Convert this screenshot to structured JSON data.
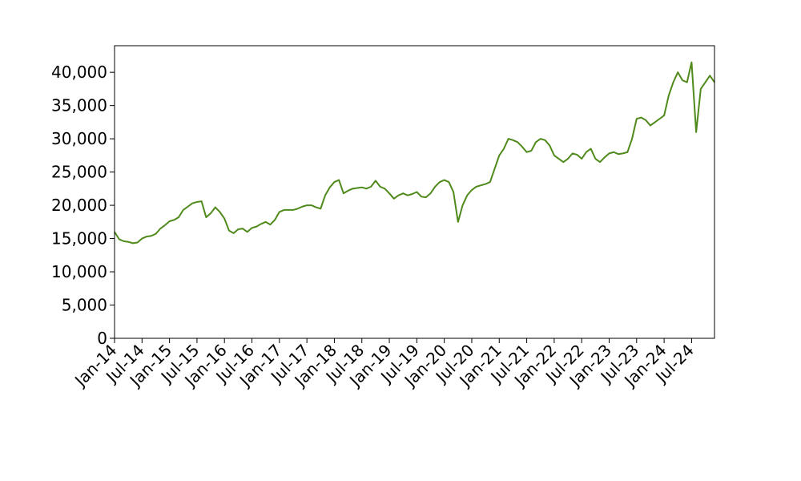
{
  "chart_data": {
    "type": "line",
    "x": [
      "2014-01",
      "2014-02",
      "2014-03",
      "2014-04",
      "2014-05",
      "2014-06",
      "2014-07",
      "2014-08",
      "2014-09",
      "2014-10",
      "2014-11",
      "2014-12",
      "2015-01",
      "2015-02",
      "2015-03",
      "2015-04",
      "2015-05",
      "2015-06",
      "2015-07",
      "2015-08",
      "2015-09",
      "2015-10",
      "2015-11",
      "2015-12",
      "2016-01",
      "2016-02",
      "2016-03",
      "2016-04",
      "2016-05",
      "2016-06",
      "2016-07",
      "2016-08",
      "2016-09",
      "2016-10",
      "2016-11",
      "2016-12",
      "2017-01",
      "2017-02",
      "2017-03",
      "2017-04",
      "2017-05",
      "2017-06",
      "2017-07",
      "2017-08",
      "2017-09",
      "2017-10",
      "2017-11",
      "2017-12",
      "2018-01",
      "2018-02",
      "2018-03",
      "2018-04",
      "2018-05",
      "2018-06",
      "2018-07",
      "2018-08",
      "2018-09",
      "2018-10",
      "2018-11",
      "2018-12",
      "2019-01",
      "2019-02",
      "2019-03",
      "2019-04",
      "2019-05",
      "2019-06",
      "2019-07",
      "2019-08",
      "2019-09",
      "2019-10",
      "2019-11",
      "2019-12",
      "2020-01",
      "2020-02",
      "2020-03",
      "2020-04",
      "2020-05",
      "2020-06",
      "2020-07",
      "2020-08",
      "2020-09",
      "2020-10",
      "2020-11",
      "2020-12",
      "2021-01",
      "2021-02",
      "2021-03",
      "2021-04",
      "2021-05",
      "2021-06",
      "2021-07",
      "2021-08",
      "2021-09",
      "2021-10",
      "2021-11",
      "2021-12",
      "2022-01",
      "2022-02",
      "2022-03",
      "2022-04",
      "2022-05",
      "2022-06",
      "2022-07",
      "2022-08",
      "2022-09",
      "2022-10",
      "2022-11",
      "2022-12",
      "2023-01",
      "2023-02",
      "2023-03",
      "2023-04",
      "2023-05",
      "2023-06",
      "2023-07",
      "2023-08",
      "2023-09",
      "2023-10",
      "2023-11",
      "2023-12",
      "2024-01",
      "2024-02",
      "2024-03",
      "2024-04",
      "2024-05",
      "2024-06",
      "2024-07",
      "2024-08",
      "2024-09",
      "2024-10",
      "2024-11",
      "2024-12"
    ],
    "series": [
      {
        "color": "#4f8a1b",
        "values": [
          16000,
          14900,
          14600,
          14500,
          14300,
          14400,
          15000,
          15300,
          15400,
          15700,
          16500,
          17000,
          17600,
          17800,
          18200,
          19300,
          19800,
          20300,
          20500,
          20600,
          18200,
          18800,
          19700,
          19000,
          18000,
          16200,
          15800,
          16400,
          16500,
          16000,
          16600,
          16800,
          17200,
          17500,
          17100,
          17800,
          19000,
          19300,
          19300,
          19300,
          19500,
          19800,
          20000,
          20000,
          19700,
          19500,
          21500,
          22700,
          23500,
          23800,
          21800,
          22200,
          22500,
          22600,
          22700,
          22500,
          22800,
          23700,
          22800,
          22500,
          21800,
          21000,
          21500,
          21800,
          21500,
          21700,
          22000,
          21300,
          21200,
          21800,
          22800,
          23500,
          23800,
          23500,
          22000,
          17500,
          20000,
          21500,
          22300,
          22800,
          23000,
          23200,
          23500,
          25500,
          27500,
          28500,
          30000,
          29800,
          29500,
          28800,
          28000,
          28200,
          29500,
          30000,
          29800,
          29000,
          27500,
          27000,
          26500,
          27000,
          27800,
          27600,
          27000,
          28000,
          28500,
          27000,
          26500,
          27200,
          27800,
          28000,
          27700,
          27800,
          28000,
          30000,
          33000,
          33200,
          32800,
          32000,
          32500,
          33000,
          33500,
          36500,
          38500,
          40000,
          38800,
          38500,
          41500,
          31000,
          37500,
          38500,
          39500,
          38500
        ]
      }
    ],
    "xlim": [
      "2014-01",
      "2024-12"
    ],
    "xticks": [
      {
        "value": "2014-01",
        "label": "Jan-14"
      },
      {
        "value": "2014-07",
        "label": "Jul-14"
      },
      {
        "value": "2015-01",
        "label": "Jan-15"
      },
      {
        "value": "2015-07",
        "label": "Jul-15"
      },
      {
        "value": "2016-01",
        "label": "Jan-16"
      },
      {
        "value": "2016-07",
        "label": "Jul-16"
      },
      {
        "value": "2017-01",
        "label": "Jan-17"
      },
      {
        "value": "2017-07",
        "label": "Jul-17"
      },
      {
        "value": "2018-01",
        "label": "Jan-18"
      },
      {
        "value": "2018-07",
        "label": "Jul-18"
      },
      {
        "value": "2019-01",
        "label": "Jan-19"
      },
      {
        "value": "2019-07",
        "label": "Jul-19"
      },
      {
        "value": "2020-01",
        "label": "Jan-20"
      },
      {
        "value": "2020-07",
        "label": "Jul-20"
      },
      {
        "value": "2021-01",
        "label": "Jan-21"
      },
      {
        "value": "2021-07",
        "label": "Jul-21"
      },
      {
        "value": "2022-01",
        "label": "Jan-22"
      },
      {
        "value": "2022-07",
        "label": "Jul-22"
      },
      {
        "value": "2023-01",
        "label": "Jan-23"
      },
      {
        "value": "2023-07",
        "label": "Jul-23"
      },
      {
        "value": "2024-01",
        "label": "Jan-24"
      },
      {
        "value": "2024-07",
        "label": "Jul-24"
      }
    ],
    "ylim": [
      0,
      44000
    ],
    "yticks": [
      0,
      {
        "value": 5000,
        "label": "5,000"
      },
      {
        "value": 10000,
        "label": "10,000"
      },
      {
        "value": 15000,
        "label": "15,000"
      },
      {
        "value": 20000,
        "label": "20,000"
      },
      {
        "value": 25000,
        "label": "25,000"
      },
      {
        "value": 30000,
        "label": "30,000"
      },
      {
        "value": 35000,
        "label": "35,000"
      },
      {
        "value": 40000,
        "label": "40,000"
      }
    ],
    "grid": false
  }
}
